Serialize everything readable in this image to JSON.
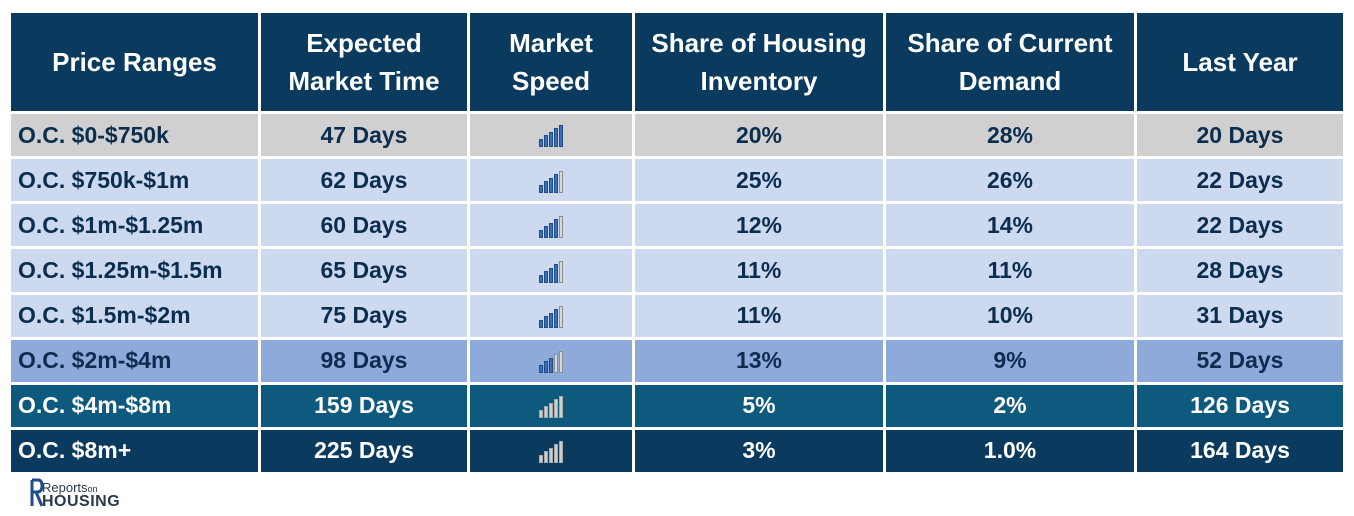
{
  "table": {
    "headers": [
      "Price Ranges",
      "Expected Market Time",
      "Market Speed",
      "Share of Housing Inventory",
      "Share of Current Demand",
      "Last Year"
    ],
    "rows": [
      {
        "range": "O.C. $0-$750k",
        "market_time": "47 Days",
        "speed_level": 5,
        "inventory": "20%",
        "demand": "28%",
        "last_year": "20 Days",
        "style": "r-gray"
      },
      {
        "range": "O.C. $750k-$1m",
        "market_time": "62 Days",
        "speed_level": 4,
        "inventory": "25%",
        "demand": "26%",
        "last_year": "22 Days",
        "style": "r-light"
      },
      {
        "range": "O.C. $1m-$1.25m",
        "market_time": "60 Days",
        "speed_level": 4,
        "inventory": "12%",
        "demand": "14%",
        "last_year": "22 Days",
        "style": "r-light"
      },
      {
        "range": "O.C. $1.25m-$1.5m",
        "market_time": "65 Days",
        "speed_level": 4,
        "inventory": "11%",
        "demand": "11%",
        "last_year": "28 Days",
        "style": "r-light"
      },
      {
        "range": "O.C. $1.5m-$2m",
        "market_time": "75 Days",
        "speed_level": 4,
        "inventory": "11%",
        "demand": "10%",
        "last_year": "31 Days",
        "style": "r-light"
      },
      {
        "range": "O.C. $2m-$4m",
        "market_time": "98 Days",
        "speed_level": 3,
        "inventory": "13%",
        "demand": "9%",
        "last_year": "52 Days",
        "style": "r-mid"
      },
      {
        "range": "O.C. $4m-$8m",
        "market_time": "159 Days",
        "speed_level": 0,
        "inventory": "5%",
        "demand": "2%",
        "last_year": "126 Days",
        "style": "r-teal"
      },
      {
        "range": "O.C. $8m+",
        "market_time": "225 Days",
        "speed_level": 0,
        "inventory": "3%",
        "demand": "1.0%",
        "last_year": "164 Days",
        "style": "r-dark"
      }
    ]
  },
  "logo": {
    "top_text": "Reports",
    "small_text": "on",
    "bottom_text": "HOUSING"
  },
  "colors": {
    "header_bg": "#0b3a5f",
    "bar_on": "#3a6fb5",
    "bar_off": "#d8d8d8"
  }
}
